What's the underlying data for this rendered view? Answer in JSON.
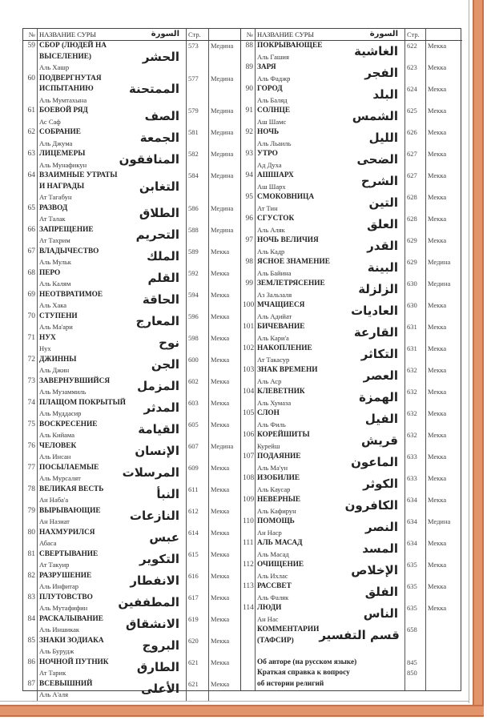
{
  "header": {
    "num": "№",
    "name": "НАЗВАНИЕ СУРЫ",
    "arabic": "السورة",
    "page": "Стр."
  },
  "left": [
    {
      "num": "59",
      "ru": [
        "СБОР (ЛЮДЕЙ НА ВЫСЕЛЕНИЕ)"
      ],
      "tr": "Аль Хашр",
      "ar": "الحشر",
      "page": "573",
      "place": "Медина"
    },
    {
      "num": "60",
      "ru": [
        "ПОДВЕРГНУТАЯ",
        "ИСПЫТАНИЮ"
      ],
      "tr": "Аль Мумтахына",
      "ar": "الممتحنة",
      "page": "577",
      "place": "Медина"
    },
    {
      "num": "61",
      "ru": [
        "БОЕВОЙ РЯД"
      ],
      "tr": "Ас Саф",
      "ar": "الصف",
      "page": "579",
      "place": "Медина"
    },
    {
      "num": "62",
      "ru": [
        "СОБРАНИЕ"
      ],
      "tr": "Аль Джума",
      "ar": "الجمعة",
      "page": "581",
      "place": "Медина"
    },
    {
      "num": "63",
      "ru": [
        "ЛИЦЕМЕРЫ"
      ],
      "tr": "Аль Мунафикун",
      "ar": "المنافقون",
      "page": "582",
      "place": "Медина"
    },
    {
      "num": "64",
      "ru": [
        "ВЗАИМНЫЕ УТРАТЫ",
        "И НАГРАДЫ"
      ],
      "tr": "Ат Тагабун",
      "ar": "التغابن",
      "page": "584",
      "place": "Медина"
    },
    {
      "num": "65",
      "ru": [
        "РАЗВОД"
      ],
      "tr": "Ат Талак",
      "ar": "الطلاق",
      "page": "586",
      "place": "Медина"
    },
    {
      "num": "66",
      "ru": [
        "ЗАПРЕЩЕНИЕ"
      ],
      "tr": "Ат Тахрим",
      "ar": "التحريم",
      "page": "588",
      "place": "Медина"
    },
    {
      "num": "67",
      "ru": [
        "ВЛАДЫЧЕСТВО"
      ],
      "tr": "Аль Мульк",
      "ar": "الملك",
      "page": "589",
      "place": "Мекка"
    },
    {
      "num": "68",
      "ru": [
        "ПЕРО"
      ],
      "tr": "Аль Калям",
      "ar": "القلم",
      "page": "592",
      "place": "Мекка"
    },
    {
      "num": "69",
      "ru": [
        "НЕОТВРАТИМОЕ"
      ],
      "tr": "Аль Хака",
      "ar": "الحاقة",
      "page": "594",
      "place": "Мекка"
    },
    {
      "num": "70",
      "ru": [
        "СТУПЕНИ"
      ],
      "tr": "Аль Ма'ари",
      "ar": "المعارج",
      "page": "596",
      "place": "Мекка"
    },
    {
      "num": "71",
      "ru": [
        "НУХ"
      ],
      "tr": "Нух",
      "ar": "نوح",
      "page": "598",
      "place": "Мекка"
    },
    {
      "num": "72",
      "ru": [
        "ДЖИННЫ"
      ],
      "tr": "Аль Джин",
      "ar": "الجن",
      "page": "600",
      "place": "Мекка"
    },
    {
      "num": "73",
      "ru": [
        "ЗАВЕРНУВШИЙСЯ"
      ],
      "tr": "Аль Музаммиль",
      "ar": "المزمل",
      "page": "602",
      "place": "Мекка"
    },
    {
      "num": "74",
      "ru": [
        "ПЛАЩОМ ПОКРЫТЫЙ"
      ],
      "tr": "Аль Муддасир",
      "ar": "المدثر",
      "page": "603",
      "place": "Мекка"
    },
    {
      "num": "75",
      "ru": [
        "ВОСКРЕСЕНИЕ"
      ],
      "tr": "Аль Кийама",
      "ar": "القيامة",
      "page": "605",
      "place": "Мекка"
    },
    {
      "num": "76",
      "ru": [
        "ЧЕЛОВЕК"
      ],
      "tr": "Аль Инсан",
      "ar": "الإنسان",
      "page": "607",
      "place": "Медина"
    },
    {
      "num": "77",
      "ru": [
        "ПОСЫЛАЕМЫЕ"
      ],
      "tr": "Аль Мурсалят",
      "ar": "المرسلات",
      "page": "609",
      "place": "Мекка"
    },
    {
      "num": "78",
      "ru": [
        "ВЕЛИКАЯ ВЕСТЬ"
      ],
      "tr": "Ан Наба'а",
      "ar": "النبأ",
      "page": "611",
      "place": "Мекка"
    },
    {
      "num": "79",
      "ru": [
        "ВЫРЫВАЮЩИЕ"
      ],
      "tr": "Ан Назиат",
      "ar": "النازعات",
      "page": "612",
      "place": "Мекка"
    },
    {
      "num": "80",
      "ru": [
        "НАХМУРИЛСЯ"
      ],
      "tr": "Абаса",
      "ar": "عبس",
      "page": "614",
      "place": "Мекка"
    },
    {
      "num": "81",
      "ru": [
        "СВЕРТЫВАНИЕ"
      ],
      "tr": "Ат Такуир",
      "ar": "التكوير",
      "page": "615",
      "place": "Мекка"
    },
    {
      "num": "82",
      "ru": [
        "РАЗРУШЕНИЕ"
      ],
      "tr": "Аль Инфитар",
      "ar": "الانفطار",
      "page": "616",
      "place": "Мекка"
    },
    {
      "num": "83",
      "ru": [
        "ПЛУТОВСТВО"
      ],
      "tr": "Аль Мутафифин",
      "ar": "المطففين",
      "page": "617",
      "place": "Мекка"
    },
    {
      "num": "84",
      "ru": [
        "РАСКАЛЫВАНИЕ"
      ],
      "tr": "Аль Иншикак",
      "ar": "الانشقاق",
      "page": "619",
      "place": "Мекка"
    },
    {
      "num": "85",
      "ru": [
        "ЗНАКИ ЗОДИАКА"
      ],
      "tr": "Аль Бурудж",
      "ar": "البروج",
      "page": "620",
      "place": "Мекка"
    },
    {
      "num": "86",
      "ru": [
        "НОЧНОЙ ПУТНИК"
      ],
      "tr": "Ат Тарик",
      "ar": "الطارق",
      "page": "621",
      "place": "Мекка"
    },
    {
      "num": "87",
      "ru": [
        "ВСЕВЫШНИЙ"
      ],
      "tr": "Аль А'аля",
      "ar": "الأعلى",
      "page": "621",
      "place": "Мекка"
    }
  ],
  "right": [
    {
      "num": "88",
      "ru": [
        "ПОКРЫВАЮЩЕЕ"
      ],
      "tr": "Аль Гашия",
      "ar": "الغاشية",
      "page": "622",
      "place": "Мекка"
    },
    {
      "num": "89",
      "ru": [
        "ЗАРЯ"
      ],
      "tr": "Аль Фаджр",
      "ar": "الفجر",
      "page": "623",
      "place": "Мекка"
    },
    {
      "num": "90",
      "ru": [
        "ГОРОД"
      ],
      "tr": "Аль Баляд",
      "ar": "البلد",
      "page": "624",
      "place": "Мекка"
    },
    {
      "num": "91",
      "ru": [
        "СОЛНЦЕ"
      ],
      "tr": "Аш Шамс",
      "ar": "الشمس",
      "page": "625",
      "place": "Мекка"
    },
    {
      "num": "92",
      "ru": [
        "НОЧЬ"
      ],
      "tr": "Аль Льаиль",
      "ar": "الليل",
      "page": "626",
      "place": "Мекка"
    },
    {
      "num": "93",
      "ru": [
        "УТРО"
      ],
      "tr": "Ад Духа",
      "ar": "الضحى",
      "page": "627",
      "place": "Мекка"
    },
    {
      "num": "94",
      "ru": [
        "АШШАРХ"
      ],
      "tr": "Аш Шарх",
      "ar": "الشرح",
      "page": "627",
      "place": "Мекка"
    },
    {
      "num": "95",
      "ru": [
        "СМОКОВНИЦА"
      ],
      "tr": "Ат Тин",
      "ar": "التين",
      "page": "628",
      "place": "Мекка"
    },
    {
      "num": "96",
      "ru": [
        "СГУСТОК"
      ],
      "tr": "Аль Аляк",
      "ar": "العلق",
      "page": "628",
      "place": "Мекка"
    },
    {
      "num": "97",
      "ru": [
        "НОЧЬ ВЕЛИЧИЯ"
      ],
      "tr": "Аль Кадр",
      "ar": "القدر",
      "page": "629",
      "place": "Мекка"
    },
    {
      "num": "98",
      "ru": [
        "ЯСНОЕ ЗНАМЕНИЕ"
      ],
      "tr": "Аль Байина",
      "ar": "البينة",
      "page": "629",
      "place": "Медина"
    },
    {
      "num": "99",
      "ru": [
        "ЗЕМЛЕТРЯСЕНИЕ"
      ],
      "tr": "Аз Зальзаля",
      "ar": "الزلزلة",
      "page": "630",
      "place": "Медина"
    },
    {
      "num": "100",
      "ru": [
        "МЧАЩИЕСЯ"
      ],
      "tr": "Аль Адийат",
      "ar": "العاديات",
      "page": "630",
      "place": "Мекка"
    },
    {
      "num": "101",
      "ru": [
        "БИЧЕВАНИЕ"
      ],
      "tr": "Аль Кари'а",
      "ar": "القارعة",
      "page": "631",
      "place": "Мекка"
    },
    {
      "num": "102",
      "ru": [
        "НАКОПЛЕНИЕ"
      ],
      "tr": "Ат Такасур",
      "ar": "التكاثر",
      "page": "631",
      "place": "Мекка"
    },
    {
      "num": "103",
      "ru": [
        "ЗНАК ВРЕМЕНИ"
      ],
      "tr": "Аль Аср",
      "ar": "العصر",
      "page": "632",
      "place": "Мекка"
    },
    {
      "num": "104",
      "ru": [
        "КЛЕВЕТНИК"
      ],
      "tr": "Аль Хумаза",
      "ar": "الهمزة",
      "page": "632",
      "place": "Мекка"
    },
    {
      "num": "105",
      "ru": [
        "СЛОН"
      ],
      "tr": "Аль Филь",
      "ar": "الفيل",
      "page": "632",
      "place": "Мекка"
    },
    {
      "num": "106",
      "ru": [
        "КОРЕЙШИТЫ"
      ],
      "tr": "Курейш",
      "ar": "قريش",
      "page": "632",
      "place": "Мекка"
    },
    {
      "num": "107",
      "ru": [
        "ПОДАЯНИЕ"
      ],
      "tr": "Аль Ма'ун",
      "ar": "الماعون",
      "page": "633",
      "place": "Мекка"
    },
    {
      "num": "108",
      "ru": [
        "ИЗОБИЛИЕ"
      ],
      "tr": "Аль Каусар",
      "ar": "الكوثر",
      "page": "633",
      "place": "Мекка"
    },
    {
      "num": "109",
      "ru": [
        "НЕВЕРНЫЕ"
      ],
      "tr": "Аль Кафирун",
      "ar": "الكافرون",
      "page": "634",
      "place": "Мекка"
    },
    {
      "num": "110",
      "ru": [
        "ПОМОЩЬ"
      ],
      "tr": "Ан Наср",
      "ar": "النصر",
      "page": "634",
      "place": "Медина"
    },
    {
      "num": "111",
      "ru": [
        "АЛЬ МАСАД"
      ],
      "tr": "Аль Масад",
      "ar": "المسد",
      "page": "634",
      "place": "Мекка"
    },
    {
      "num": "112",
      "ru": [
        "ОЧИЩЕНИЕ"
      ],
      "tr": "Аль Ихлас",
      "ar": "الإخلاص",
      "page": "635",
      "place": "Мекка"
    },
    {
      "num": "113",
      "ru": [
        "РАССВЕТ"
      ],
      "tr": "Аль Фаляк",
      "ar": "الفلق",
      "page": "635",
      "place": "Мекка"
    },
    {
      "num": "114",
      "ru": [
        "ЛЮДИ"
      ],
      "tr": "Ан Нас",
      "ar": "الناس",
      "page": "635",
      "place": "Мекка"
    },
    {
      "num": "",
      "ru": [
        "КОММЕНТАРИИ",
        "(ТАФСИР)"
      ],
      "tr": "",
      "ar": "قسم التفسير",
      "page": "658",
      "place": ""
    }
  ],
  "appendix": [
    {
      "label": [
        "Об авторе (на русском языке)"
      ],
      "page": "845"
    },
    {
      "label": [
        "Краткая справка к вопросу",
        "об истории религий"
      ],
      "page": "850"
    }
  ],
  "colors": {
    "frame": "#e2946a",
    "rule": "#444444"
  }
}
